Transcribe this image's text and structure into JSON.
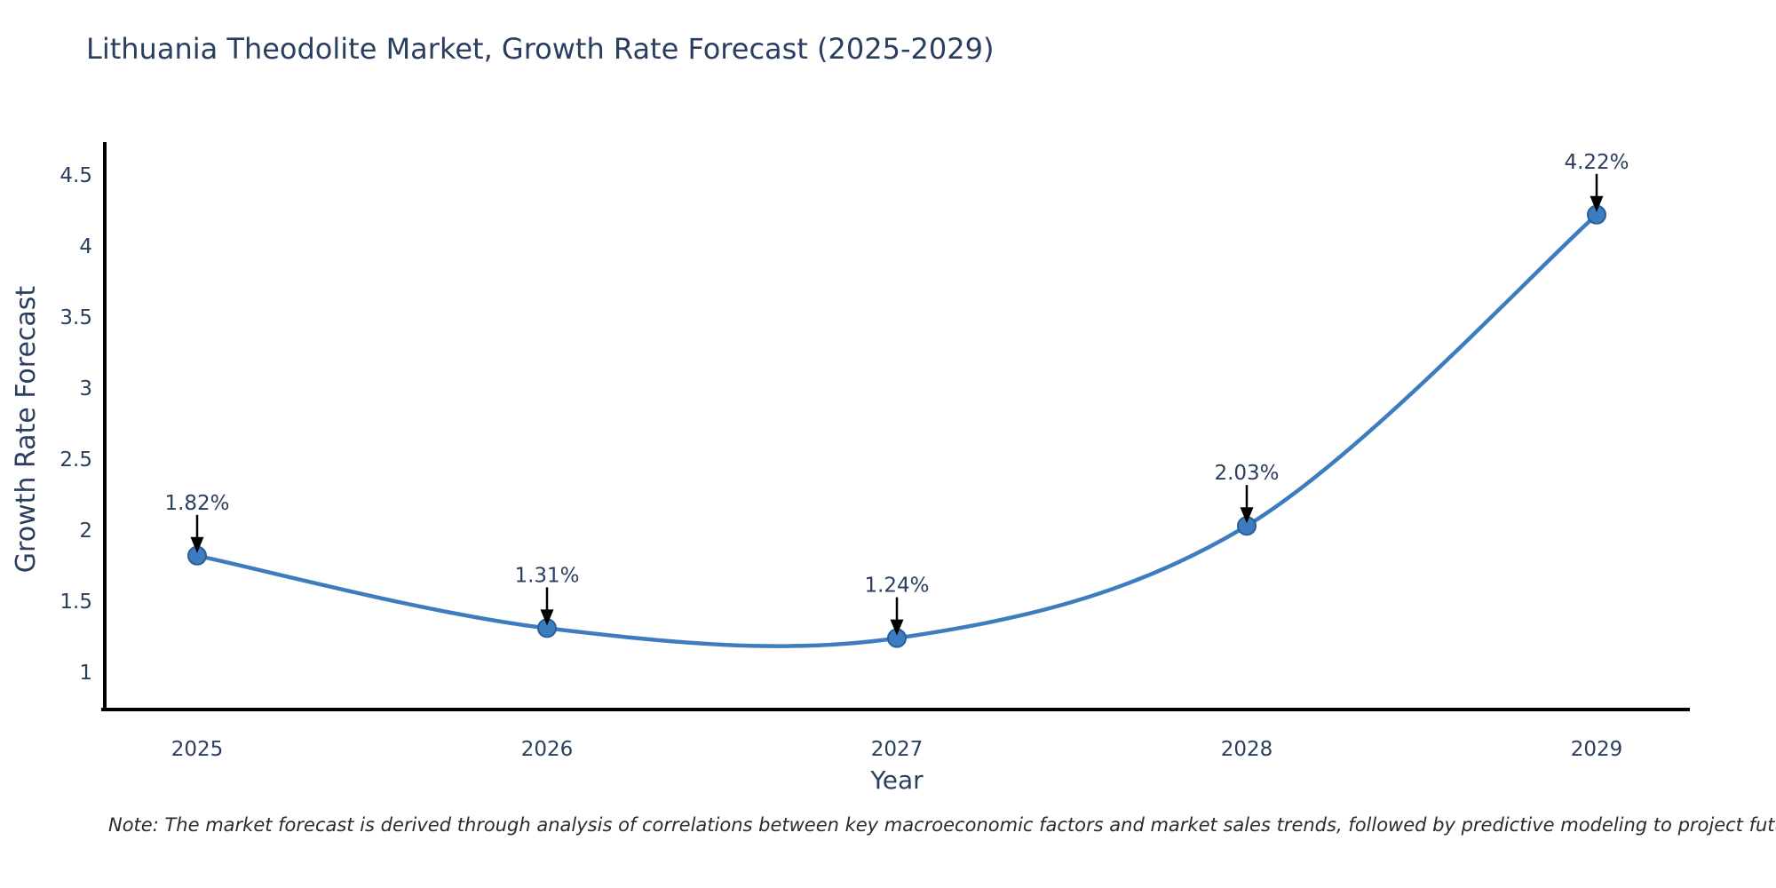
{
  "note": "Note: The market forecast is derived through analysis of correlations between key macroeconomic factors and market sales trends, followed by predictive modeling to project future sales",
  "chart_data": {
    "type": "line",
    "title": "Lithuania Theodolite Market, Growth Rate Forecast (2025-2029)",
    "xlabel": "Year",
    "ylabel": "Growth Rate Forecast",
    "x": [
      2025,
      2026,
      2027,
      2028,
      2029
    ],
    "series": [
      {
        "name": "Growth Rate Forecast",
        "values": [
          1.82,
          1.31,
          1.24,
          2.03,
          4.22
        ]
      }
    ],
    "point_labels": [
      "1.82%",
      "1.31%",
      "1.24%",
      "2.03%",
      "4.22%"
    ],
    "y_ticks": [
      1,
      1.5,
      2,
      2.5,
      3,
      3.5,
      4,
      4.5
    ],
    "x_ticks": [
      "2025",
      "2026",
      "2027",
      "2028",
      "2029"
    ],
    "ylim": [
      0.73,
      4.73
    ],
    "line_shape": "spline",
    "grid": false,
    "legend": "none",
    "markers": true,
    "annotation_arrows": true
  },
  "colors": {
    "line": "#3d7dbf",
    "marker_fill": "#3d7dbf",
    "marker_edge": "#2a5f94",
    "axis": "#000000",
    "text": "#2a3f5f",
    "arrow": "#000000",
    "note_text": "#2b2b2b",
    "background": "#ffffff"
  }
}
